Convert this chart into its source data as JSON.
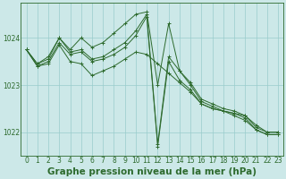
{
  "title": "Graphe pression niveau de la mer (hPa)",
  "background_color": "#cce8e8",
  "grid_color": "#99cccc",
  "line_color": "#2d6a2d",
  "xlim": [
    -0.5,
    23.5
  ],
  "ylim": [
    1021.5,
    1024.75
  ],
  "yticks": [
    1022,
    1023,
    1024
  ],
  "xticks": [
    0,
    1,
    2,
    3,
    4,
    5,
    6,
    7,
    8,
    9,
    10,
    11,
    12,
    13,
    14,
    15,
    16,
    17,
    18,
    19,
    20,
    21,
    22,
    23
  ],
  "series": [
    [
      1023.75,
      1023.45,
      1023.55,
      1024.0,
      1023.7,
      1023.75,
      1023.55,
      1023.6,
      1023.75,
      1023.9,
      1024.15,
      1024.5,
      1021.75,
      1023.6,
      1023.3,
      1023.0,
      1022.65,
      1022.55,
      1022.45,
      1022.4,
      1022.35,
      1022.15,
      1022.0,
      1022.0
    ],
    [
      1023.75,
      1023.45,
      1023.6,
      1024.0,
      1023.75,
      1024.0,
      1023.8,
      1023.9,
      1024.1,
      1024.3,
      1024.5,
      1024.55,
      1023.0,
      1024.3,
      1023.3,
      1023.05,
      1022.7,
      1022.6,
      1022.5,
      1022.45,
      1022.35,
      1022.1,
      1022.0,
      1022.0
    ],
    [
      1023.75,
      1023.4,
      1023.5,
      1023.9,
      1023.65,
      1023.7,
      1023.5,
      1023.55,
      1023.65,
      1023.8,
      1024.05,
      1024.45,
      1021.7,
      1023.5,
      1023.1,
      1022.9,
      1022.6,
      1022.5,
      1022.45,
      1022.4,
      1022.3,
      1022.05,
      1021.95,
      1021.95
    ],
    [
      1023.75,
      1023.4,
      1023.45,
      1023.85,
      1023.5,
      1023.45,
      1023.2,
      1023.3,
      1023.4,
      1023.55,
      1023.7,
      1023.65,
      1023.45,
      1023.25,
      1023.05,
      1022.85,
      1022.6,
      1022.5,
      1022.45,
      1022.35,
      1022.25,
      1022.05,
      1021.95,
      1021.95
    ]
  ],
  "tick_fontsize": 5.5,
  "title_fontsize": 7.5
}
